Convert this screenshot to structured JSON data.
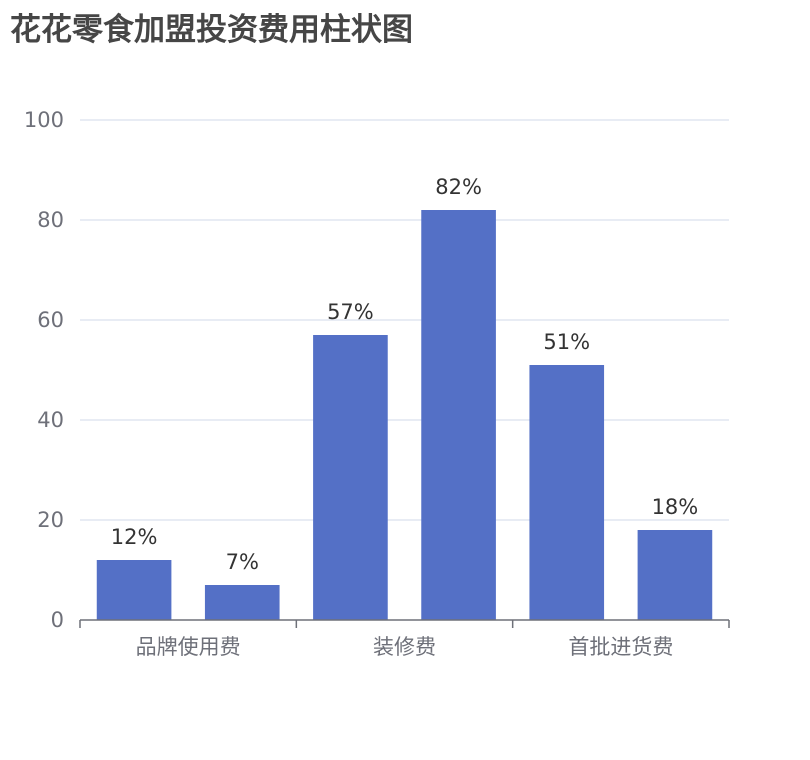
{
  "title": "花花零食加盟投资费用柱状图",
  "chart_data": {
    "type": "bar",
    "title": "花花零食加盟投资费用柱状图",
    "xlabel": "",
    "ylabel": "",
    "ylim": [
      0,
      100
    ],
    "yticks": [
      0,
      20,
      40,
      60,
      80,
      100
    ],
    "grid": true,
    "x_tick_labels": [
      "品牌使用费",
      "装修费",
      "首批进货费"
    ],
    "categories": [
      "品牌使用费",
      "",
      "装修费",
      "",
      "首批进货费",
      ""
    ],
    "values": [
      12,
      7,
      57,
      82,
      51,
      18
    ],
    "data_labels": [
      "12%",
      "7%",
      "57%",
      "82%",
      "51%",
      "18%"
    ]
  },
  "colors": {
    "bar": "#5470c6",
    "grid": "#e0e6f1",
    "axis": "#6e7079"
  }
}
